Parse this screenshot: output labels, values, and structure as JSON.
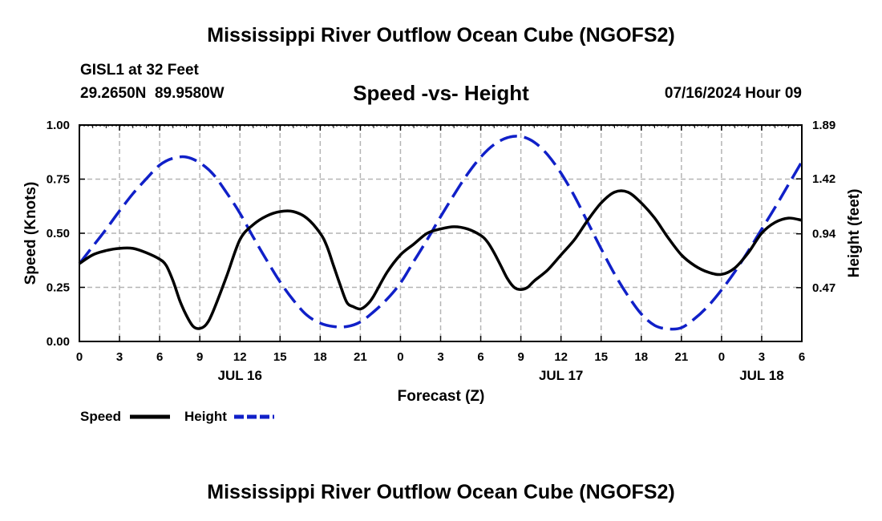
{
  "header": {
    "title": "Mississippi River Outflow Ocean Cube (NGOFS2)",
    "station": "GISL1 at 32 Feet",
    "lat": "29.2650N",
    "lon": "89.9580W",
    "subtitle": "Speed -vs- Height",
    "datetime": "07/16/2024 Hour 09"
  },
  "footer": {
    "title": "Mississippi River Outflow Ocean Cube (NGOFS2)"
  },
  "chart_data": {
    "type": "line",
    "title": "Speed -vs- Height",
    "xlabel": "Forecast (Z)",
    "ylabel_left": "Speed (Knots)",
    "ylabel_right": "Height (feet)",
    "x_range_hours": [
      0,
      54
    ],
    "x_ticks": [
      {
        "h": 0,
        "label": "0"
      },
      {
        "h": 3,
        "label": "3"
      },
      {
        "h": 6,
        "label": "6"
      },
      {
        "h": 9,
        "label": "9"
      },
      {
        "h": 12,
        "label": "12"
      },
      {
        "h": 15,
        "label": "15"
      },
      {
        "h": 18,
        "label": "18"
      },
      {
        "h": 21,
        "label": "21"
      },
      {
        "h": 24,
        "label": "0"
      },
      {
        "h": 27,
        "label": "3"
      },
      {
        "h": 30,
        "label": "6"
      },
      {
        "h": 33,
        "label": "9"
      },
      {
        "h": 36,
        "label": "12"
      },
      {
        "h": 39,
        "label": "15"
      },
      {
        "h": 42,
        "label": "18"
      },
      {
        "h": 45,
        "label": "21"
      },
      {
        "h": 48,
        "label": "0"
      },
      {
        "h": 51,
        "label": "3"
      },
      {
        "h": 54,
        "label": "6"
      }
    ],
    "date_labels": [
      {
        "h": 12,
        "label": "JUL 16"
      },
      {
        "h": 36,
        "label": "JUL 17"
      },
      {
        "h": 51,
        "label": "JUL 18"
      }
    ],
    "left_axis": {
      "min": 0,
      "max": 1,
      "ticks": [
        0,
        0.25,
        0.5,
        0.75,
        1.0
      ],
      "tick_labels": [
        "0.00",
        "0.25",
        "0.50",
        "0.75",
        "1.00"
      ]
    },
    "right_axis": {
      "min": 0,
      "max": 1.89,
      "ticks": [
        0.47,
        0.94,
        1.42,
        1.89
      ],
      "tick_labels": [
        "0.47",
        "0.94",
        "1.42",
        "1.89"
      ]
    },
    "grid": true,
    "series": [
      {
        "name": "Speed",
        "axis": "left",
        "color": "#000000",
        "dash": "solid",
        "x": [
          0,
          1,
          2,
          3,
          4,
          5,
          6,
          6.5,
          7,
          7.5,
          8,
          8.5,
          9,
          9.5,
          10,
          11,
          12,
          13,
          14,
          15,
          16,
          17,
          18,
          18.5,
          19,
          19.5,
          20,
          20.5,
          21,
          21.5,
          22,
          23,
          24,
          25,
          26,
          27,
          28,
          29,
          30,
          30.5,
          31,
          31.5,
          32,
          32.5,
          33,
          33.5,
          34,
          35,
          36,
          37,
          38,
          39,
          40,
          41,
          42,
          43,
          44,
          45,
          46,
          47,
          48,
          49,
          50,
          51,
          52,
          53,
          54
        ],
        "values": [
          0.36,
          0.4,
          0.42,
          0.43,
          0.43,
          0.41,
          0.38,
          0.35,
          0.28,
          0.19,
          0.12,
          0.07,
          0.06,
          0.08,
          0.14,
          0.3,
          0.47,
          0.54,
          0.58,
          0.6,
          0.6,
          0.57,
          0.5,
          0.44,
          0.35,
          0.26,
          0.18,
          0.16,
          0.15,
          0.17,
          0.21,
          0.32,
          0.4,
          0.45,
          0.5,
          0.52,
          0.53,
          0.52,
          0.49,
          0.46,
          0.41,
          0.35,
          0.29,
          0.25,
          0.24,
          0.25,
          0.28,
          0.33,
          0.4,
          0.47,
          0.56,
          0.64,
          0.69,
          0.69,
          0.64,
          0.57,
          0.48,
          0.4,
          0.35,
          0.32,
          0.31,
          0.34,
          0.41,
          0.5,
          0.55,
          0.57,
          0.56
        ]
      },
      {
        "name": "Height",
        "axis": "right",
        "color": "#1020c8",
        "dash": "dashed",
        "x": [
          0,
          1,
          2,
          3,
          4,
          5,
          6,
          7,
          8,
          9,
          10,
          11,
          12,
          13,
          14,
          15,
          16,
          17,
          18,
          19,
          20,
          21,
          22,
          23,
          24,
          25,
          26,
          27,
          28,
          29,
          30,
          31,
          32,
          33,
          34,
          35,
          36,
          37,
          38,
          39,
          40,
          41,
          42,
          43,
          44,
          45,
          46,
          47,
          48,
          49,
          50,
          51,
          52,
          53,
          54
        ],
        "values": [
          0.68,
          0.83,
          0.98,
          1.14,
          1.29,
          1.42,
          1.54,
          1.6,
          1.61,
          1.56,
          1.46,
          1.3,
          1.12,
          0.91,
          0.71,
          0.52,
          0.36,
          0.23,
          0.16,
          0.13,
          0.13,
          0.17,
          0.26,
          0.37,
          0.51,
          0.7,
          0.89,
          1.09,
          1.28,
          1.46,
          1.61,
          1.72,
          1.78,
          1.79,
          1.74,
          1.63,
          1.47,
          1.27,
          1.04,
          0.81,
          0.59,
          0.4,
          0.24,
          0.14,
          0.11,
          0.12,
          0.2,
          0.31,
          0.45,
          0.61,
          0.79,
          0.98,
          1.17,
          1.37,
          1.57
        ]
      }
    ],
    "legend": [
      {
        "label": "Speed",
        "color": "#000000",
        "dash": "solid"
      },
      {
        "label": "Height",
        "color": "#1020c8",
        "dash": "dashed"
      }
    ],
    "legend_position": "bottom-left"
  }
}
